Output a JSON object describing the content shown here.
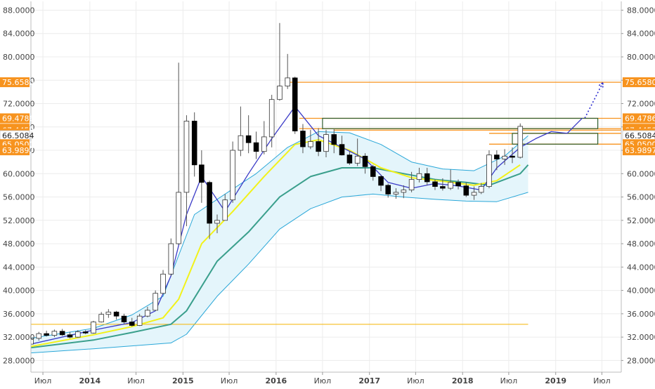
{
  "chart_data": {
    "type": "candlestick",
    "y_axis": {
      "min": 26.0,
      "max": 89.5,
      "ticks": [
        "28.0000",
        "32.0000",
        "36.0000",
        "40.0000",
        "44.0000",
        "48.0000",
        "52.0000",
        "56.0000",
        "60.0000",
        "64.0000",
        "68.0000",
        "72.0000",
        "76.0000",
        "80.0000",
        "84.0000",
        "88.0000"
      ]
    },
    "x_axis": {
      "range": [
        "2013-05-15",
        "2019-09-15"
      ],
      "labels": [
        {
          "date": "2013-07-01",
          "text": "Июл",
          "bold": false
        },
        {
          "date": "2014-01-01",
          "text": "2014",
          "bold": true
        },
        {
          "date": "2014-07-01",
          "text": "Июл",
          "bold": false
        },
        {
          "date": "2015-01-01",
          "text": "2015",
          "bold": true
        },
        {
          "date": "2015-07-01",
          "text": "Июл",
          "bold": false
        },
        {
          "date": "2016-01-01",
          "text": "2016",
          "bold": true
        },
        {
          "date": "2016-07-01",
          "text": "Июл",
          "bold": false
        },
        {
          "date": "2017-01-01",
          "text": "2017",
          "bold": true
        },
        {
          "date": "2017-07-01",
          "text": "Июл",
          "bold": false
        },
        {
          "date": "2018-01-01",
          "text": "2018",
          "bold": true
        },
        {
          "date": "2018-07-01",
          "text": "Июл",
          "bold": false
        },
        {
          "date": "2019-01-01",
          "text": "2019",
          "bold": true
        },
        {
          "date": "2019-07-01",
          "text": "Июл",
          "bold": false
        }
      ]
    },
    "grid": true,
    "price_labels_left": [
      {
        "value": 75.658,
        "text": "75.6580",
        "color": "#f7931e"
      },
      {
        "value": 69.4786,
        "text": "69.4786",
        "color": "#f7931e"
      },
      {
        "value": 67.7056,
        "text": "67.7056",
        "color": "#f7931e"
      },
      {
        "value": 67.4453,
        "text": "67.4453",
        "color": "#f7931e"
      },
      {
        "value": 66.8966,
        "text": "66.8966",
        "color": "#f7931e"
      },
      {
        "value": 66.5084,
        "text": "66.5084",
        "color": "#ffffff"
      },
      {
        "value": 65.05,
        "text": "65.0500",
        "color": "#f7931e"
      },
      {
        "value": 63.9897,
        "text": "63.9897",
        "color": "#f7931e"
      }
    ],
    "price_labels_right": [
      {
        "value": 75.658,
        "text": "75.6580",
        "color": "#f7931e"
      },
      {
        "value": 69.4786,
        "text": "69.4786",
        "color": "#f7931e"
      },
      {
        "value": 67.7056,
        "text": "67.7056",
        "color": "#f7931e"
      },
      {
        "value": 67.4453,
        "text": "67.4453",
        "color": "#f7931e"
      },
      {
        "value": 66.8966,
        "text": "66.8966",
        "color": "#f7931e"
      },
      {
        "value": 66.5084,
        "text": "66.5084",
        "color": "#ffffff"
      },
      {
        "value": 65.05,
        "text": "65.0500",
        "color": "#f7931e"
      },
      {
        "value": 63.9897,
        "text": "63.9897",
        "color": "#f7931e"
      }
    ],
    "candles": [
      {
        "date": "2013-05-15",
        "o": 30.8,
        "h": 32.3,
        "l": 30.5,
        "c": 31.8
      },
      {
        "date": "2013-06-15",
        "o": 31.8,
        "h": 32.9,
        "l": 31.4,
        "c": 32.6
      },
      {
        "date": "2013-07-15",
        "o": 32.6,
        "h": 33.1,
        "l": 32.1,
        "c": 32.3
      },
      {
        "date": "2013-08-15",
        "o": 32.3,
        "h": 33.3,
        "l": 32.0,
        "c": 33.0
      },
      {
        "date": "2013-09-15",
        "o": 33.0,
        "h": 33.4,
        "l": 32.2,
        "c": 32.4
      },
      {
        "date": "2013-10-15",
        "o": 32.4,
        "h": 32.9,
        "l": 31.8,
        "c": 32.0
      },
      {
        "date": "2013-11-15",
        "o": 32.0,
        "h": 33.2,
        "l": 31.9,
        "c": 32.9
      },
      {
        "date": "2013-12-15",
        "o": 32.9,
        "h": 33.2,
        "l": 32.5,
        "c": 32.7
      },
      {
        "date": "2014-01-15",
        "o": 32.7,
        "h": 34.8,
        "l": 32.6,
        "c": 34.6
      },
      {
        "date": "2014-02-15",
        "o": 34.6,
        "h": 36.3,
        "l": 34.5,
        "c": 35.9
      },
      {
        "date": "2014-03-15",
        "o": 35.9,
        "h": 36.8,
        "l": 35.3,
        "c": 36.3
      },
      {
        "date": "2014-04-15",
        "o": 36.3,
        "h": 36.5,
        "l": 35.0,
        "c": 35.6
      },
      {
        "date": "2014-05-15",
        "o": 35.6,
        "h": 36.0,
        "l": 34.2,
        "c": 34.6
      },
      {
        "date": "2014-06-15",
        "o": 34.6,
        "h": 35.3,
        "l": 33.8,
        "c": 34.0
      },
      {
        "date": "2014-07-15",
        "o": 34.0,
        "h": 36.0,
        "l": 33.9,
        "c": 35.6
      },
      {
        "date": "2014-08-15",
        "o": 35.6,
        "h": 37.2,
        "l": 35.4,
        "c": 36.6
      },
      {
        "date": "2014-09-15",
        "o": 36.6,
        "h": 40.0,
        "l": 36.5,
        "c": 39.5
      },
      {
        "date": "2014-10-15",
        "o": 39.5,
        "h": 43.5,
        "l": 39.3,
        "c": 42.8
      },
      {
        "date": "2014-11-15",
        "o": 42.8,
        "h": 48.9,
        "l": 42.5,
        "c": 48.0
      },
      {
        "date": "2014-12-15",
        "o": 48.0,
        "h": 79.0,
        "l": 47.8,
        "c": 56.8
      },
      {
        "date": "2015-01-15",
        "o": 56.8,
        "h": 70.0,
        "l": 51.0,
        "c": 69.0
      },
      {
        "date": "2015-02-15",
        "o": 69.0,
        "h": 70.5,
        "l": 59.5,
        "c": 61.5
      },
      {
        "date": "2015-03-15",
        "o": 61.5,
        "h": 64.0,
        "l": 55.0,
        "c": 58.5
      },
      {
        "date": "2015-04-15",
        "o": 58.5,
        "h": 58.8,
        "l": 48.8,
        "c": 51.5
      },
      {
        "date": "2015-05-15",
        "o": 51.5,
        "h": 53.0,
        "l": 49.8,
        "c": 52.0
      },
      {
        "date": "2015-06-15",
        "o": 52.0,
        "h": 56.5,
        "l": 52.0,
        "c": 55.5
      },
      {
        "date": "2015-07-15",
        "o": 55.5,
        "h": 65.5,
        "l": 55.0,
        "c": 64.0
      },
      {
        "date": "2015-08-15",
        "o": 64.0,
        "h": 71.5,
        "l": 63.0,
        "c": 66.5
      },
      {
        "date": "2015-09-15",
        "o": 66.5,
        "h": 70.0,
        "l": 63.5,
        "c": 65.3
      },
      {
        "date": "2015-10-15",
        "o": 65.3,
        "h": 67.2,
        "l": 62.5,
        "c": 63.8
      },
      {
        "date": "2015-11-15",
        "o": 63.8,
        "h": 69.0,
        "l": 63.3,
        "c": 66.3
      },
      {
        "date": "2015-12-15",
        "o": 66.3,
        "h": 73.5,
        "l": 64.5,
        "c": 72.7
      },
      {
        "date": "2016-01-15",
        "o": 72.7,
        "h": 85.8,
        "l": 72.5,
        "c": 75.0
      },
      {
        "date": "2016-02-15",
        "o": 75.0,
        "h": 80.5,
        "l": 74.5,
        "c": 76.4
      },
      {
        "date": "2016-03-15",
        "o": 76.4,
        "h": 76.6,
        "l": 66.8,
        "c": 67.3
      },
      {
        "date": "2016-04-15",
        "o": 67.3,
        "h": 68.5,
        "l": 63.5,
        "c": 64.6
      },
      {
        "date": "2016-05-15",
        "o": 64.6,
        "h": 67.5,
        "l": 64.2,
        "c": 65.5
      },
      {
        "date": "2016-06-15",
        "o": 65.5,
        "h": 67.8,
        "l": 63.0,
        "c": 63.8
      },
      {
        "date": "2016-07-15",
        "o": 63.8,
        "h": 67.5,
        "l": 62.8,
        "c": 66.7
      },
      {
        "date": "2016-08-15",
        "o": 66.7,
        "h": 67.6,
        "l": 63.5,
        "c": 65.0
      },
      {
        "date": "2016-09-15",
        "o": 65.0,
        "h": 66.5,
        "l": 63.1,
        "c": 63.2
      },
      {
        "date": "2016-10-15",
        "o": 63.2,
        "h": 63.8,
        "l": 61.5,
        "c": 61.8
      },
      {
        "date": "2016-11-15",
        "o": 61.8,
        "h": 66.0,
        "l": 61.3,
        "c": 63.0
      },
      {
        "date": "2016-12-15",
        "o": 63.0,
        "h": 63.5,
        "l": 60.0,
        "c": 61.2
      },
      {
        "date": "2017-01-15",
        "o": 61.2,
        "h": 61.5,
        "l": 58.8,
        "c": 59.5
      },
      {
        "date": "2017-02-15",
        "o": 59.5,
        "h": 59.8,
        "l": 57.0,
        "c": 58.0
      },
      {
        "date": "2017-03-15",
        "o": 58.0,
        "h": 58.3,
        "l": 55.9,
        "c": 56.5
      },
      {
        "date": "2017-04-15",
        "o": 56.5,
        "h": 57.5,
        "l": 55.7,
        "c": 56.8
      },
      {
        "date": "2017-05-15",
        "o": 56.8,
        "h": 58.0,
        "l": 55.8,
        "c": 57.2
      },
      {
        "date": "2017-06-15",
        "o": 57.2,
        "h": 60.3,
        "l": 56.8,
        "c": 59.0
      },
      {
        "date": "2017-07-15",
        "o": 59.0,
        "h": 61.0,
        "l": 58.5,
        "c": 60.0
      },
      {
        "date": "2017-08-15",
        "o": 60.0,
        "h": 61.0,
        "l": 58.0,
        "c": 58.6
      },
      {
        "date": "2017-09-15",
        "o": 58.6,
        "h": 59.0,
        "l": 57.2,
        "c": 57.8
      },
      {
        "date": "2017-10-15",
        "o": 57.8,
        "h": 59.2,
        "l": 57.1,
        "c": 57.5
      },
      {
        "date": "2017-11-15",
        "o": 57.5,
        "h": 60.7,
        "l": 57.2,
        "c": 58.5
      },
      {
        "date": "2017-12-15",
        "o": 58.5,
        "h": 59.0,
        "l": 57.3,
        "c": 57.9
      },
      {
        "date": "2018-01-15",
        "o": 57.9,
        "h": 58.5,
        "l": 56.0,
        "c": 56.3
      },
      {
        "date": "2018-02-15",
        "o": 56.3,
        "h": 57.8,
        "l": 55.5,
        "c": 56.8
      },
      {
        "date": "2018-03-15",
        "o": 56.8,
        "h": 58.4,
        "l": 56.5,
        "c": 57.8
      },
      {
        "date": "2018-04-15",
        "o": 57.8,
        "h": 64.0,
        "l": 57.5,
        "c": 63.2
      },
      {
        "date": "2018-05-15",
        "o": 63.2,
        "h": 64.0,
        "l": 60.6,
        "c": 62.5
      },
      {
        "date": "2018-06-15",
        "o": 62.5,
        "h": 64.2,
        "l": 61.5,
        "c": 63.0
      },
      {
        "date": "2018-07-15",
        "o": 63.0,
        "h": 64.5,
        "l": 61.8,
        "c": 62.8
      },
      {
        "date": "2018-08-15",
        "o": 62.8,
        "h": 68.6,
        "l": 62.6,
        "c": 68.1
      }
    ],
    "ema_fast": [
      {
        "date": "2013-05-15",
        "v": 30.8
      },
      {
        "date": "2014-01-15",
        "v": 33.2
      },
      {
        "date": "2014-06-15",
        "v": 34.5
      },
      {
        "date": "2014-09-15",
        "v": 36.5
      },
      {
        "date": "2014-11-15",
        "v": 42.5
      },
      {
        "date": "2015-01-15",
        "v": 53.0
      },
      {
        "date": "2015-03-15",
        "v": 59.5
      },
      {
        "date": "2015-06-15",
        "v": 53.5
      },
      {
        "date": "2015-09-15",
        "v": 60.0
      },
      {
        "date": "2015-12-15",
        "v": 66.0
      },
      {
        "date": "2016-03-15",
        "v": 71.5
      },
      {
        "date": "2016-06-15",
        "v": 66.5
      },
      {
        "date": "2016-09-15",
        "v": 64.5
      },
      {
        "date": "2016-12-15",
        "v": 62.5
      },
      {
        "date": "2017-03-15",
        "v": 58.5
      },
      {
        "date": "2017-06-15",
        "v": 57.5
      },
      {
        "date": "2017-09-15",
        "v": 58.3
      },
      {
        "date": "2017-12-15",
        "v": 57.9
      },
      {
        "date": "2018-03-15",
        "v": 57.2
      },
      {
        "date": "2018-05-15",
        "v": 61.0
      },
      {
        "date": "2018-08-15",
        "v": 64.5
      },
      {
        "date": "2018-10-15",
        "v": 66.0
      },
      {
        "date": "2018-12-15",
        "v": 67.2
      },
      {
        "date": "2019-02-15",
        "v": 66.9
      },
      {
        "date": "2019-04-15",
        "v": 69.5
      }
    ],
    "ema_mid": [
      {
        "date": "2013-05-15",
        "v": 30.4
      },
      {
        "date": "2014-01-15",
        "v": 32.4
      },
      {
        "date": "2014-06-15",
        "v": 33.8
      },
      {
        "date": "2014-10-15",
        "v": 35.3
      },
      {
        "date": "2014-12-15",
        "v": 38.5
      },
      {
        "date": "2015-03-15",
        "v": 48.0
      },
      {
        "date": "2015-07-15",
        "v": 53.5
      },
      {
        "date": "2015-11-15",
        "v": 59.5
      },
      {
        "date": "2016-03-15",
        "v": 65.0
      },
      {
        "date": "2016-06-15",
        "v": 65.8
      },
      {
        "date": "2016-10-15",
        "v": 64.0
      },
      {
        "date": "2017-02-15",
        "v": 61.0
      },
      {
        "date": "2017-06-15",
        "v": 59.3
      },
      {
        "date": "2017-10-15",
        "v": 58.7
      },
      {
        "date": "2018-02-15",
        "v": 58.0
      },
      {
        "date": "2018-05-15",
        "v": 58.8
      },
      {
        "date": "2018-08-15",
        "v": 61.5
      }
    ],
    "ema_slow": [
      {
        "date": "2013-05-15",
        "v": 30.2
      },
      {
        "date": "2014-01-15",
        "v": 31.5
      },
      {
        "date": "2014-06-15",
        "v": 32.8
      },
      {
        "date": "2014-11-15",
        "v": 34.2
      },
      {
        "date": "2015-01-15",
        "v": 36.5
      },
      {
        "date": "2015-05-15",
        "v": 45.0
      },
      {
        "date": "2015-09-15",
        "v": 50.0
      },
      {
        "date": "2016-01-15",
        "v": 56.0
      },
      {
        "date": "2016-05-15",
        "v": 59.5
      },
      {
        "date": "2016-09-15",
        "v": 61.0
      },
      {
        "date": "2017-01-15",
        "v": 61.0
      },
      {
        "date": "2017-05-15",
        "v": 60.0
      },
      {
        "date": "2017-09-15",
        "v": 59.0
      },
      {
        "date": "2018-01-15",
        "v": 58.5
      },
      {
        "date": "2018-04-15",
        "v": 58.0
      },
      {
        "date": "2018-08-15",
        "v": 60.0
      },
      {
        "date": "2018-09-15",
        "v": 61.5
      }
    ],
    "bb_upper": [
      {
        "date": "2013-05-15",
        "v": 31.8
      },
      {
        "date": "2014-01-15",
        "v": 33.5
      },
      {
        "date": "2014-06-15",
        "v": 35.8
      },
      {
        "date": "2014-10-15",
        "v": 39.0
      },
      {
        "date": "2014-12-15",
        "v": 46.0
      },
      {
        "date": "2015-02-15",
        "v": 53.0
      },
      {
        "date": "2015-06-15",
        "v": 56.5
      },
      {
        "date": "2015-10-15",
        "v": 60.0
      },
      {
        "date": "2016-02-15",
        "v": 64.5
      },
      {
        "date": "2016-06-15",
        "v": 67.2
      },
      {
        "date": "2016-10-15",
        "v": 67.0
      },
      {
        "date": "2017-02-15",
        "v": 65.0
      },
      {
        "date": "2017-06-15",
        "v": 62.0
      },
      {
        "date": "2017-10-15",
        "v": 60.8
      },
      {
        "date": "2018-02-15",
        "v": 60.5
      },
      {
        "date": "2018-06-15",
        "v": 63.0
      },
      {
        "date": "2018-09-15",
        "v": 66.5
      }
    ],
    "bb_lower": [
      {
        "date": "2013-05-15",
        "v": 29.3
      },
      {
        "date": "2014-01-15",
        "v": 30.0
      },
      {
        "date": "2014-06-15",
        "v": 30.5
      },
      {
        "date": "2014-11-15",
        "v": 31.0
      },
      {
        "date": "2015-01-15",
        "v": 32.5
      },
      {
        "date": "2015-05-15",
        "v": 39.0
      },
      {
        "date": "2015-09-15",
        "v": 44.5
      },
      {
        "date": "2016-01-15",
        "v": 50.5
      },
      {
        "date": "2016-05-15",
        "v": 54.0
      },
      {
        "date": "2016-09-15",
        "v": 56.0
      },
      {
        "date": "2017-01-15",
        "v": 56.5
      },
      {
        "date": "2017-05-15",
        "v": 56.0
      },
      {
        "date": "2017-09-15",
        "v": 55.6
      },
      {
        "date": "2018-01-15",
        "v": 55.3
      },
      {
        "date": "2018-05-15",
        "v": 55.2
      },
      {
        "date": "2018-09-15",
        "v": 56.8
      }
    ],
    "forecast_arrow": {
      "from_date": "2019-04-25",
      "from_v": 69.5,
      "to_date": "2019-07-05",
      "to_v": 75.6
    },
    "support_line": {
      "value": 34.2,
      "from": "2013-05-15",
      "to": "2018-09-15"
    },
    "h_levels": [
      {
        "value": 75.658,
        "from": "2016-02-15",
        "to": "2019-09-15"
      },
      {
        "value": 69.4786,
        "from": "2016-04-01",
        "to": "2019-09-15"
      },
      {
        "value": 67.7056,
        "from": "2016-04-01",
        "to": "2019-09-15"
      },
      {
        "value": 67.4453,
        "from": "2016-08-15",
        "to": "2019-09-15"
      },
      {
        "value": 66.8966,
        "from": "2018-04-15",
        "to": "2019-09-15"
      },
      {
        "value": 65.05,
        "from": "2018-04-15",
        "to": "2019-09-15"
      }
    ],
    "zones": [
      {
        "from": "2016-07-01",
        "to": "2019-06-15",
        "top": 69.4786,
        "bottom": 67.7056
      },
      {
        "from": "2018-07-15",
        "to": "2019-06-15",
        "top": 66.8966,
        "bottom": 65.05
      }
    ],
    "colors": {
      "up_body": "#ffffff",
      "down_body": "#000000",
      "wick": "#555555",
      "ema_fast": "#3b3bc7",
      "ema_mid": "#f2f21a",
      "ema_slow": "#3a9f8c",
      "bb_line": "#2aa7d8",
      "bb_fill": "#e4f5fb",
      "level": "#f7931e",
      "zone_border": "#2f5f2f",
      "forecast": "#2b2bd0"
    }
  }
}
